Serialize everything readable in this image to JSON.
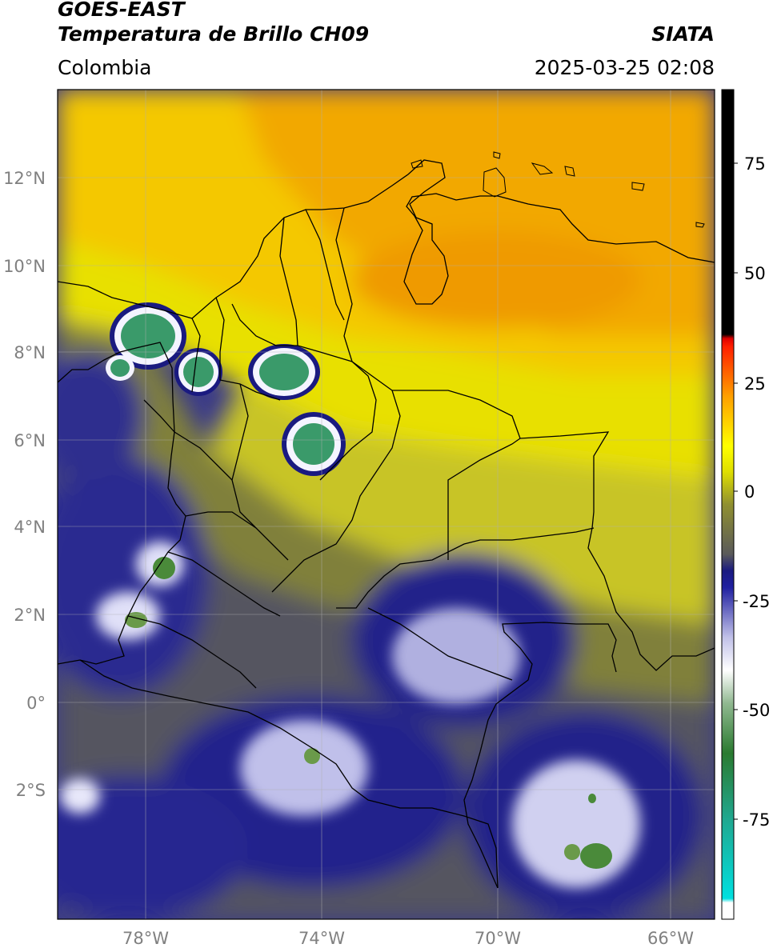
{
  "header": {
    "satellite": "GOES-EAST",
    "product": "Temperatura de Brillo CH09",
    "brand": "SIATA",
    "region": "Colombia",
    "timestamp": "2025-03-25 02:08"
  },
  "map": {
    "lat_labels": [
      "12°N",
      "10°N",
      "8°N",
      "6°N",
      "4°N",
      "2°N",
      "0°",
      "2°S"
    ],
    "lon_labels": [
      "78°W",
      "74°W",
      "70°W",
      "66°W"
    ],
    "extent_lon": [
      -80,
      -65
    ],
    "extent_lat": [
      -5,
      14
    ]
  },
  "colorbar": {
    "ticks": [
      "75",
      "50",
      "25",
      "0",
      "-25",
      "-50",
      "-75"
    ],
    "range": [
      -95,
      90
    ]
  }
}
